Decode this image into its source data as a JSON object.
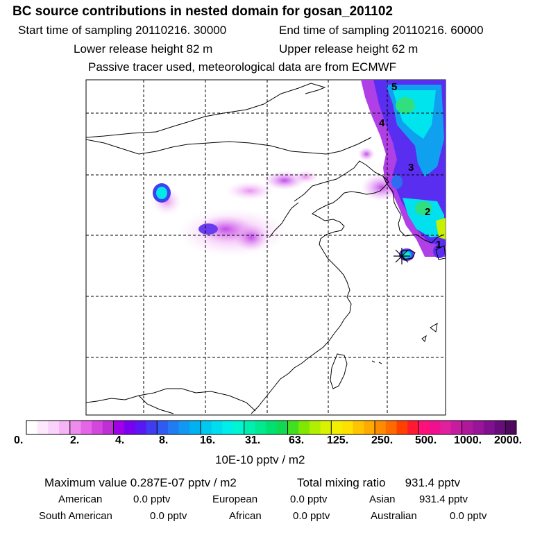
{
  "header": {
    "title": "BC  source contributions in nested domain for gosan_201102",
    "start_time": "Start time of sampling 20110216. 30000",
    "end_time": "End time of sampling 20110216. 60000",
    "lower_release": "Lower release height   82 m",
    "upper_release": "Upper release height   62 m",
    "tracer_note": "Passive tracer used, meteorological data are from ECMWF"
  },
  "map": {
    "time_markers": [
      "5",
      "4",
      "3",
      "2",
      "1"
    ],
    "receptor": "gosan"
  },
  "colorbar": {
    "tick_labels": [
      "0.",
      "2.",
      "4.",
      "8.",
      "16.",
      "31.",
      "63.",
      "125.",
      "250.",
      "500.",
      "1000.",
      "2000."
    ],
    "unit": "10E-10 pptv / m2",
    "colors": [
      "#ffffff",
      "#fde8fd",
      "#fbd2fb",
      "#f5b4f5",
      "#ee8cee",
      "#e466e6",
      "#d447dc",
      "#be2fd6",
      "#a000e8",
      "#7a00f0",
      "#5a17f5",
      "#3f3cf2",
      "#2f5bf2",
      "#1f7cf2",
      "#1098f2",
      "#00b2f2",
      "#00c8ee",
      "#00ddee",
      "#00eeea",
      "#00f5d2",
      "#00eeb0",
      "#00e890",
      "#00e070",
      "#10d850",
      "#40e020",
      "#80e800",
      "#b0ef00",
      "#d8f200",
      "#f2f000",
      "#ffe000",
      "#ffc400",
      "#ffaa00",
      "#ff8c00",
      "#ff6a00",
      "#ff4000",
      "#ff1a30",
      "#ff1078",
      "#f0108f",
      "#e0209c",
      "#c81ca0",
      "#b0189c",
      "#981498",
      "#801090",
      "#680c7c",
      "#50085c"
    ]
  },
  "summary": {
    "max_value": "Maximum value  0.287E-07 pptv / m2",
    "total_mixing": "Total mixing ratio",
    "total_value": "931.4 pptv",
    "regions": [
      {
        "name": "American",
        "value": "0.0 pptv"
      },
      {
        "name": "European",
        "value": "0.0 pptv"
      },
      {
        "name": "Asian",
        "value": "931.4 pptv"
      },
      {
        "name": "South American",
        "value": "0.0 pptv"
      },
      {
        "name": "African",
        "value": "0.0 pptv"
      },
      {
        "name": "Australian",
        "value": "0.0 pptv"
      }
    ]
  }
}
